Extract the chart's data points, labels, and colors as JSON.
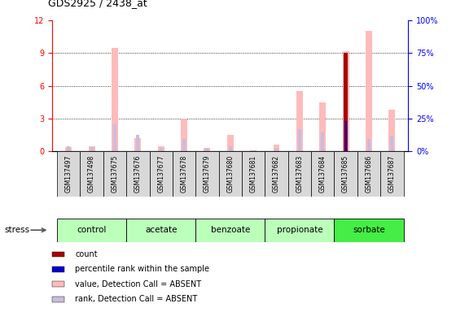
{
  "title": "GDS2925 / 2438_at",
  "samples": [
    "GSM137497",
    "GSM137498",
    "GSM137675",
    "GSM137676",
    "GSM137677",
    "GSM137678",
    "GSM137679",
    "GSM137680",
    "GSM137681",
    "GSM137682",
    "GSM137683",
    "GSM137684",
    "GSM137685",
    "GSM137686",
    "GSM137687"
  ],
  "value_absent": [
    0.4,
    0.5,
    9.5,
    1.2,
    0.5,
    3.0,
    0.3,
    1.5,
    0.12,
    0.6,
    5.5,
    4.5,
    9.2,
    11.0,
    3.8
  ],
  "rank_absent": [
    0.45,
    0.38,
    2.5,
    1.5,
    0.35,
    1.1,
    0.28,
    0.45,
    0.1,
    0.3,
    2.0,
    1.7,
    0.0,
    1.1,
    1.4
  ],
  "count_red": [
    0.0,
    0.0,
    0.0,
    0.0,
    0.0,
    0.0,
    0.0,
    0.0,
    0.0,
    0.0,
    0.0,
    0.0,
    9.0,
    0.0,
    0.0
  ],
  "percentile_blue": [
    0.0,
    0.0,
    0.0,
    0.0,
    0.0,
    0.0,
    0.0,
    0.0,
    0.0,
    0.0,
    0.0,
    0.0,
    2.8,
    0.0,
    0.0
  ],
  "ylim_left": [
    0,
    12
  ],
  "ylim_right": [
    0,
    100
  ],
  "yticks_left": [
    0,
    3,
    6,
    9,
    12
  ],
  "yticks_right": [
    0,
    25,
    50,
    75,
    100
  ],
  "ytick_right_labels": [
    "0%",
    "25%",
    "50%",
    "75%",
    "100%"
  ],
  "color_value_absent": "#ffbbbb",
  "color_rank_absent": "#ccbbdd",
  "color_count": "#aa0000",
  "color_percentile": "#0000cc",
  "bg_plot": "#ffffff",
  "bg_ticklabel": "#d8d8d8",
  "bg_group_light": "#bbffbb",
  "bg_sorbate": "#44ee44",
  "group_spans": [
    {
      "name": "control",
      "start": 0,
      "end": 2
    },
    {
      "name": "acetate",
      "start": 3,
      "end": 5
    },
    {
      "name": "benzoate",
      "start": 6,
      "end": 8
    },
    {
      "name": "propionate",
      "start": 9,
      "end": 11
    },
    {
      "name": "sorbate",
      "start": 12,
      "end": 14
    }
  ]
}
